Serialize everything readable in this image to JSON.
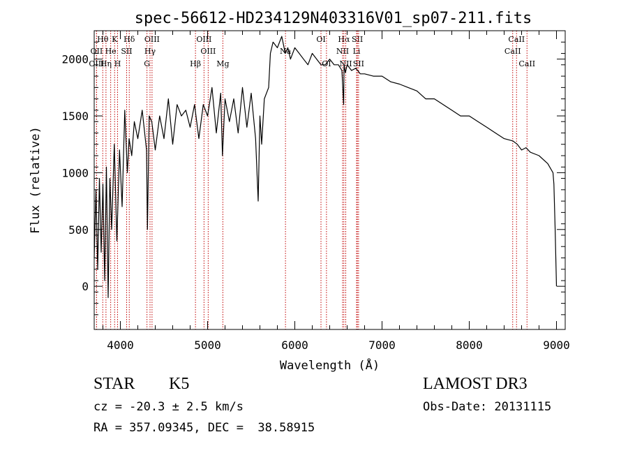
{
  "chart_data": {
    "type": "line",
    "title": "spec-56612-HD234129N403316V01_sp07-211.fits",
    "xlabel": "Wavelength (Å)",
    "ylabel": "Flux (relative)",
    "xlim": [
      3700,
      9100
    ],
    "ylim": [
      -380,
      2250
    ],
    "xticks": [
      4000,
      5000,
      6000,
      7000,
      8000,
      9000
    ],
    "yticks": [
      0,
      500,
      1000,
      1500,
      2000
    ],
    "grid": false,
    "series": [
      {
        "name": "flux",
        "x": [
          3700,
          3720,
          3740,
          3760,
          3780,
          3800,
          3820,
          3840,
          3860,
          3880,
          3900,
          3930,
          3960,
          3990,
          4020,
          4050,
          4080,
          4100,
          4130,
          4160,
          4200,
          4250,
          4300,
          4310,
          4330,
          4360,
          4400,
          4450,
          4500,
          4550,
          4600,
          4650,
          4700,
          4750,
          4800,
          4850,
          4900,
          4950,
          5000,
          5050,
          5100,
          5150,
          5170,
          5200,
          5250,
          5300,
          5350,
          5400,
          5450,
          5500,
          5550,
          5580,
          5600,
          5620,
          5650,
          5700,
          5720,
          5750,
          5800,
          5850,
          5890,
          5920,
          5950,
          6000,
          6050,
          6100,
          6150,
          6200,
          6250,
          6300,
          6350,
          6400,
          6450,
          6500,
          6540,
          6560,
          6565,
          6580,
          6600,
          6650,
          6700,
          6750,
          6800,
          6900,
          7000,
          7100,
          7200,
          7300,
          7400,
          7500,
          7600,
          7700,
          7800,
          7900,
          8000,
          8100,
          8200,
          8300,
          8400,
          8500,
          8550,
          8600,
          8650,
          8700,
          8800,
          8900,
          8960,
          8970,
          8985,
          9000
        ],
        "y": [
          250,
          850,
          150,
          950,
          300,
          900,
          50,
          1050,
          -100,
          950,
          500,
          1250,
          400,
          1200,
          700,
          1550,
          1000,
          1300,
          1150,
          1450,
          1300,
          1550,
          1200,
          500,
          1500,
          1450,
          1200,
          1500,
          1300,
          1650,
          1250,
          1600,
          1500,
          1550,
          1400,
          1600,
          1300,
          1600,
          1500,
          1750,
          1350,
          1700,
          1150,
          1650,
          1450,
          1650,
          1350,
          1750,
          1400,
          1700,
          1300,
          750,
          1500,
          1250,
          1650,
          1750,
          2050,
          2150,
          2100,
          2200,
          2050,
          2100,
          2000,
          2100,
          2050,
          2000,
          1950,
          2050,
          2000,
          1950,
          1950,
          2000,
          1950,
          1950,
          1900,
          1600,
          1950,
          1880,
          1950,
          1900,
          1920,
          1870,
          1870,
          1850,
          1850,
          1800,
          1780,
          1750,
          1720,
          1650,
          1650,
          1600,
          1550,
          1500,
          1500,
          1450,
          1400,
          1350,
          1300,
          1280,
          1250,
          1200,
          1220,
          1180,
          1150,
          1080,
          1000,
          900,
          500,
          0
        ]
      }
    ],
    "line_markers": [
      {
        "label": "Hθ",
        "wavelength": 3798,
        "row": 0
      },
      {
        "label": "OII",
        "wavelength": 3727,
        "row": 1
      },
      {
        "label": "OIII",
        "wavelength": 3727,
        "row": 2
      },
      {
        "label": "K",
        "wavelength": 3934,
        "row": 0
      },
      {
        "label": "He",
        "wavelength": 3889,
        "row": 1
      },
      {
        "label": "Hη",
        "wavelength": 3835,
        "row": 2
      },
      {
        "label": "Hδ",
        "wavelength": 4102,
        "row": 0
      },
      {
        "label": "SII",
        "wavelength": 4072,
        "row": 1
      },
      {
        "label": "H",
        "wavelength": 3968,
        "row": 2
      },
      {
        "label": "OIII",
        "wavelength": 4363,
        "row": 0
      },
      {
        "label": "Hγ",
        "wavelength": 4340,
        "row": 1
      },
      {
        "label": "G",
        "wavelength": 4305,
        "row": 2
      },
      {
        "label": "Hβ",
        "wavelength": 4861,
        "row": 2
      },
      {
        "label": "OIII",
        "wavelength": 4959,
        "row": 0
      },
      {
        "label": "OIII",
        "wavelength": 5007,
        "row": 1
      },
      {
        "label": "Mg",
        "wavelength": 5175,
        "row": 2
      },
      {
        "label": "Na",
        "wavelength": 5893,
        "row": 1
      },
      {
        "label": "OI",
        "wavelength": 6300,
        "row": 0
      },
      {
        "label": "OI",
        "wavelength": 6363,
        "row": 2
      },
      {
        "label": "Hα",
        "wavelength": 6563,
        "row": 0
      },
      {
        "label": "NII",
        "wavelength": 6548,
        "row": 1
      },
      {
        "label": "NII",
        "wavelength": 6584,
        "row": 2
      },
      {
        "label": "SII",
        "wavelength": 6717,
        "row": 0
      },
      {
        "label": "Li",
        "wavelength": 6708,
        "row": 1
      },
      {
        "label": "SII",
        "wavelength": 6731,
        "row": 2
      },
      {
        "label": "CaII",
        "wavelength": 8542,
        "row": 0
      },
      {
        "label": "CaII",
        "wavelength": 8498,
        "row": 1
      },
      {
        "label": "CaII",
        "wavelength": 8662,
        "row": 2
      }
    ]
  },
  "info": {
    "object_class": "STAR",
    "subclass": "K5",
    "survey": "LAMOST DR3",
    "redshift_line": "cz = -20.3 ± 2.5 km/s",
    "obs_date": "Obs-Date: 20131115",
    "coords": "RA = 357.09345, DEC =  38.58915"
  }
}
